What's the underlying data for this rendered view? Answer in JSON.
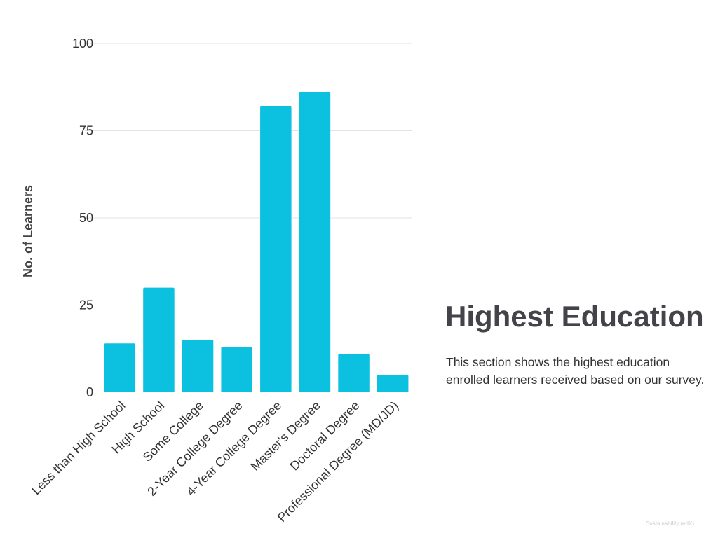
{
  "chart_data": {
    "type": "bar",
    "title": "",
    "xlabel": "",
    "ylabel": "No. of Learners",
    "categories": [
      "Less than High School",
      "High School",
      "Some College",
      "2-Year College Degree",
      "4-Year College Degree",
      "Master's Degree",
      "Doctoral Degree",
      "Professional Degree (MD/JD)"
    ],
    "values": [
      14,
      30,
      15,
      13,
      82,
      86,
      11,
      5
    ],
    "ylim": [
      0,
      100
    ],
    "yticks": [
      0,
      25,
      50,
      75,
      100
    ],
    "grid": true,
    "bar_color": "#0cc0df"
  },
  "side": {
    "title": "Highest Education",
    "description": "This section shows the highest education enrolled learners received based on our survey."
  },
  "footer": "Sustainability (edX)"
}
